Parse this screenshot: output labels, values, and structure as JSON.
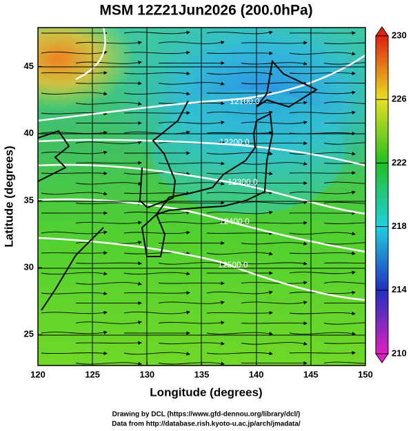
{
  "chart_data": {
    "type": "map",
    "title": "MSM 12Z21Jun2026 (200.0hPa)",
    "x_label": "Longitude (degrees)",
    "y_label": "Latitude  (degrees)",
    "xlim": [
      120,
      150
    ],
    "xticks": [
      120,
      125,
      130,
      135,
      140,
      145,
      150
    ],
    "ylim": [
      22.7,
      47.9
    ],
    "yticks": [
      25,
      30,
      35,
      40,
      45
    ],
    "contour_labels": [
      "12100.0",
      "12200.0",
      "12300.0",
      "12400.0",
      "12500.0"
    ],
    "colorbar": {
      "lim": [
        210,
        230
      ],
      "ticks": [
        210,
        214,
        218,
        222,
        226,
        230
      ],
      "colors": [
        "#e020c0",
        "#2030c0",
        "#20d0e0",
        "#20c020",
        "#e8e020",
        "#e02010"
      ]
    },
    "footer": [
      "Drawing by DCL (https://www.gfd-dennou.org/library/dcl/)",
      "Data from http://database.rish.kyoto-u.ac.jp/arch/jmadata/"
    ]
  }
}
